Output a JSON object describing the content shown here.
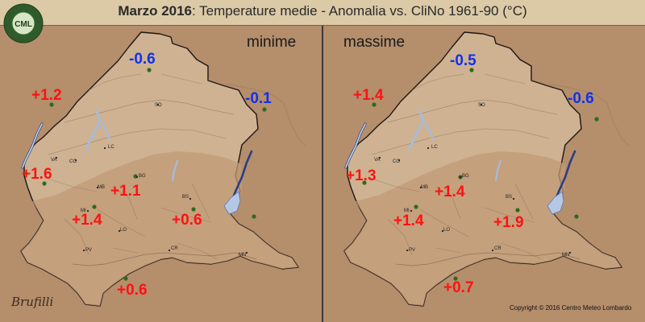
{
  "title": {
    "bold": "Marzo 2016",
    "rest": ": Temperature medie - Anomalia vs. CliNo 1961-90 (°C)"
  },
  "logo": {
    "initials": "CML",
    "ring_text": "CENTRO METEO LOMBARDO"
  },
  "colors": {
    "positive": "#ff1111",
    "negative": "#1030ee",
    "station": "#2f6a1a"
  },
  "panels": [
    {
      "label": "minime",
      "stations": [
        {
          "value": "-0.6"
        },
        {
          "value": "+1.2"
        },
        {
          "value": "-0.1"
        },
        {
          "value": "+1.6"
        },
        {
          "value": "+1.1"
        },
        {
          "value": "+1.4"
        },
        {
          "value": "+0.6"
        },
        {
          "value": "+0.6"
        }
      ]
    },
    {
      "label": "massime",
      "stations": [
        {
          "value": "-0.5"
        },
        {
          "value": "+1.4"
        },
        {
          "value": "-0.6"
        },
        {
          "value": "+1.3"
        },
        {
          "value": "+1.4"
        },
        {
          "value": "+1.4"
        },
        {
          "value": "+1.9"
        },
        {
          "value": "+0.7"
        }
      ]
    }
  ],
  "cities": [
    "SO",
    "VA",
    "CO",
    "LC",
    "BG",
    "MB",
    "BS",
    "MI",
    "LO",
    "CR",
    "PV",
    "MN"
  ],
  "copyright": "Copyright © 2016 Centro Meteo Lombardo",
  "signature": "Brufilli"
}
